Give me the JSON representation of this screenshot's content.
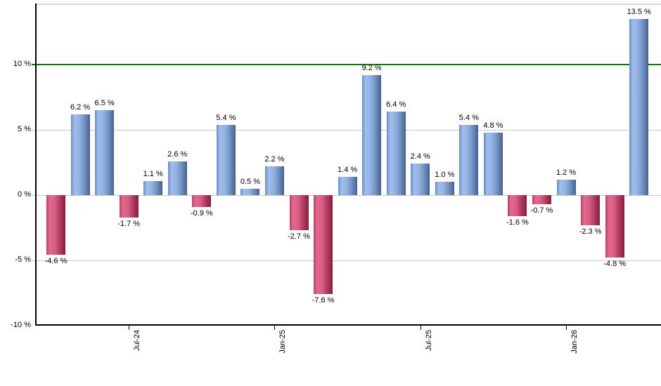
{
  "chart_data": {
    "type": "bar",
    "title": "",
    "xlabel": "",
    "ylabel": "",
    "ylim": [
      -10,
      14.7
    ],
    "grid": true,
    "bars": [
      {
        "value": -4.6,
        "label": "-4.6 %"
      },
      {
        "value": 6.2,
        "label": "6.2 %"
      },
      {
        "value": 6.5,
        "label": "6.5 %"
      },
      {
        "value": -1.7,
        "label": "-1.7 %"
      },
      {
        "value": 1.1,
        "label": "1.1 %"
      },
      {
        "value": 2.6,
        "label": "2.6 %"
      },
      {
        "value": -0.9,
        "label": "-0.9 %"
      },
      {
        "value": 5.4,
        "label": "5.4 %"
      },
      {
        "value": 0.5,
        "label": "0.5 %"
      },
      {
        "value": 2.2,
        "label": "2.2 %"
      },
      {
        "value": -2.7,
        "label": "-2.7 %"
      },
      {
        "value": -7.6,
        "label": "-7.6 %"
      },
      {
        "value": 1.4,
        "label": "1.4 %"
      },
      {
        "value": 9.2,
        "label": "9.2 %"
      },
      {
        "value": 6.4,
        "label": "6.4 %"
      },
      {
        "value": 2.4,
        "label": "2.4 %"
      },
      {
        "value": 1.0,
        "label": "1.0 %"
      },
      {
        "value": 5.4,
        "label": "5.4 %"
      },
      {
        "value": 4.8,
        "label": "4.8 %"
      },
      {
        "value": -1.6,
        "label": "-1.6 %"
      },
      {
        "value": -0.7,
        "label": "-0.7 %"
      },
      {
        "value": 1.2,
        "label": "1.2 %"
      },
      {
        "value": -2.3,
        "label": "-2.3 %"
      },
      {
        "value": -4.8,
        "label": "-4.8 %"
      },
      {
        "value": 13.5,
        "label": "13.5 %"
      }
    ],
    "y_ticks": [
      {
        "value": 10,
        "label": "10 %"
      },
      {
        "value": 5,
        "label": "5 %"
      },
      {
        "value": 0,
        "label": "0 %"
      },
      {
        "value": -5,
        "label": "-5 %"
      },
      {
        "value": -10,
        "label": "-10 %"
      }
    ],
    "y_gridline_values": [
      5,
      0,
      -5
    ],
    "reference_line": {
      "value": 10,
      "color": "#007d00"
    },
    "x_ticks": [
      {
        "bar_index": 3,
        "label": "Jul-24"
      },
      {
        "bar_index": 9,
        "label": "Jan-25"
      },
      {
        "bar_index": 15,
        "label": "Jul-25"
      },
      {
        "bar_index": 21,
        "label": "Jan-26"
      }
    ],
    "colors": {
      "positive_bar_light": "#9fbeee",
      "positive_bar_dark": "#47608e",
      "negative_bar_light": "#e26a8e",
      "negative_bar_dark": "#84203f",
      "gridline": "#c8c8c8",
      "axis": "#000000",
      "top_border": "#d8d8d8",
      "reference_line": "#007d00",
      "label_text": "#000000",
      "background": "#ffffff"
    },
    "legend": null
  }
}
